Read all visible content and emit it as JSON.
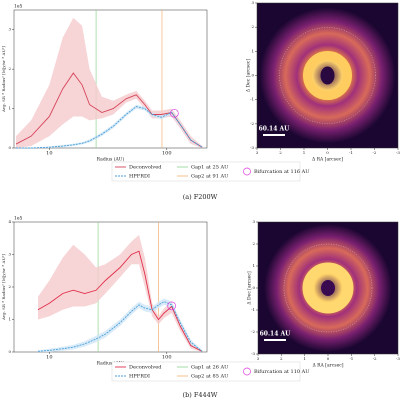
{
  "chart_data": [
    {
      "type": "line",
      "xscale": "log",
      "xlabel": "Radius (AU)",
      "ylabel": "Avg. SB * Radius² [MJy/sr * AU²]",
      "y_offset_label": "1e5",
      "xlim": [
        5,
        220
      ],
      "xticks": [
        10,
        100
      ],
      "ylim": [
        0,
        3.5
      ],
      "yticks": [
        0,
        1,
        2,
        3
      ],
      "x": [
        5.2,
        7,
        10,
        13,
        16,
        19,
        22,
        28,
        35,
        45,
        55,
        65,
        75,
        90,
        110,
        130,
        160,
        200
      ],
      "series": [
        {
          "name": "Deconvolved",
          "color": "#d6455a",
          "band_color": "#f5c9cc",
          "dash": false,
          "values": [
            0.1,
            0.3,
            0.8,
            1.5,
            1.9,
            1.6,
            1.1,
            0.9,
            1.0,
            1.25,
            1.35,
            1.1,
            0.85,
            0.85,
            0.9,
            0.6,
            0.2,
            0.02
          ],
          "upper": [
            0.3,
            0.7,
            1.6,
            2.8,
            3.3,
            3.1,
            2.0,
            1.3,
            1.2,
            1.35,
            1.45,
            1.2,
            0.95,
            0.95,
            1.0,
            0.7,
            0.3,
            0.05
          ],
          "lower": [
            0,
            0.05,
            0.3,
            0.6,
            0.8,
            0.8,
            0.7,
            0.75,
            0.85,
            1.15,
            1.25,
            1.0,
            0.75,
            0.75,
            0.8,
            0.5,
            0.1,
            0
          ]
        },
        {
          "name": "HPFRDI",
          "color": "#4a9fd8",
          "band_color": "#cfe6f6",
          "dash": true,
          "values": [
            0,
            0,
            0.02,
            0.05,
            0.08,
            0.12,
            0.18,
            0.35,
            0.55,
            0.85,
            1.05,
            1.0,
            0.85,
            0.78,
            0.9,
            0.6,
            0.2,
            0.02
          ],
          "upper": [
            0.01,
            0.01,
            0.04,
            0.08,
            0.11,
            0.15,
            0.22,
            0.4,
            0.6,
            0.9,
            1.1,
            1.05,
            0.9,
            0.83,
            0.95,
            0.65,
            0.24,
            0.04
          ],
          "lower": [
            0,
            0,
            0,
            0.02,
            0.05,
            0.09,
            0.14,
            0.3,
            0.5,
            0.8,
            1.0,
            0.95,
            0.8,
            0.73,
            0.85,
            0.55,
            0.16,
            0
          ]
        }
      ],
      "vlines": [
        {
          "name": "Gap1 at 25 AU",
          "x": 25,
          "color": "#8fd48f"
        },
        {
          "name": "Gap2 at 91 AU",
          "x": 91,
          "color": "#f0b070"
        }
      ],
      "marker": {
        "name": "Bifurcation at 116 AU",
        "x": 116,
        "y": 0.88,
        "color": "#e040e0"
      }
    },
    {
      "type": "line",
      "xscale": "log",
      "xlabel": "Radius (AU)",
      "ylabel": "Avg. SB * Radius² [MJy/sr * AU²]",
      "y_offset_label": "1e5",
      "xlim": [
        5,
        220
      ],
      "xticks": [
        10,
        100
      ],
      "ylim": [
        0,
        4
      ],
      "yticks": [
        0,
        1,
        2,
        3,
        4
      ],
      "x": [
        8,
        10,
        13,
        16,
        20,
        25,
        30,
        40,
        50,
        58,
        65,
        75,
        85,
        95,
        110,
        130,
        160,
        200
      ],
      "series": [
        {
          "name": "Deconvolved",
          "color": "#e0304a",
          "band_color": "#f5c9cc",
          "dash": false,
          "values": [
            1.3,
            1.5,
            1.8,
            1.9,
            1.8,
            1.9,
            2.2,
            2.6,
            3.0,
            3.1,
            2.4,
            1.3,
            1.0,
            1.2,
            1.4,
            0.8,
            0.2,
            0.02
          ],
          "upper": [
            1.7,
            2.2,
            2.9,
            3.3,
            3.0,
            2.6,
            2.7,
            3.0,
            3.4,
            3.6,
            2.9,
            1.5,
            1.1,
            1.35,
            1.55,
            0.95,
            0.3,
            0.05
          ],
          "lower": [
            1.0,
            1.1,
            1.3,
            1.4,
            1.4,
            1.5,
            1.8,
            2.3,
            2.7,
            2.7,
            2.0,
            1.1,
            0.85,
            1.05,
            1.2,
            0.65,
            0.1,
            0
          ]
        },
        {
          "name": "HPFRDI",
          "color": "#4a9fd8",
          "band_color": "#cfe6f6",
          "dash": true,
          "values": [
            0.02,
            0.05,
            0.1,
            0.15,
            0.25,
            0.4,
            0.55,
            0.9,
            1.25,
            1.45,
            1.35,
            1.3,
            1.45,
            1.55,
            1.45,
            0.9,
            0.3,
            0.02
          ],
          "upper": [
            0.05,
            0.1,
            0.16,
            0.22,
            0.33,
            0.5,
            0.65,
            1.0,
            1.35,
            1.55,
            1.45,
            1.4,
            1.55,
            1.65,
            1.55,
            1.0,
            0.38,
            0.06
          ],
          "lower": [
            0,
            0,
            0.04,
            0.08,
            0.17,
            0.3,
            0.45,
            0.8,
            1.15,
            1.35,
            1.25,
            1.2,
            1.35,
            1.45,
            1.35,
            0.8,
            0.22,
            0
          ]
        }
      ],
      "vlines": [
        {
          "name": "Gap1 at 26 AU",
          "x": 26,
          "color": "#8fd48f"
        },
        {
          "name": "Gap2 at 85 AU",
          "x": 85,
          "color": "#f0b070"
        }
      ],
      "marker": {
        "name": "Bifurcation at 110 AU",
        "x": 110,
        "y": 1.42,
        "color": "#e040e0"
      }
    }
  ],
  "images": [
    {
      "xlabel": "Δ RA [arcsec]",
      "ylabel": "Δ Dec [arcsec]",
      "xlim": [
        3,
        -3
      ],
      "ylim": [
        -3,
        3
      ],
      "xticks": [
        3,
        2,
        1,
        0,
        -1,
        -2,
        -3
      ],
      "yticks": [
        -3,
        -2,
        -1,
        0,
        1,
        2,
        3
      ],
      "scalebar": "60.14 AU"
    },
    {
      "xlabel": "Δ RA [arcsec]",
      "ylabel": "Δ Dec [arcsec]",
      "xlim": [
        3,
        -3
      ],
      "ylim": [
        -3,
        3
      ],
      "xticks": [
        3,
        2,
        1,
        0,
        -1,
        -2,
        -3
      ],
      "yticks": [
        -3,
        -2,
        -1,
        0,
        1,
        2,
        3
      ],
      "scalebar": "60.14 AU"
    }
  ],
  "captions": [
    "(a) F200W",
    "(b) F444W"
  ]
}
